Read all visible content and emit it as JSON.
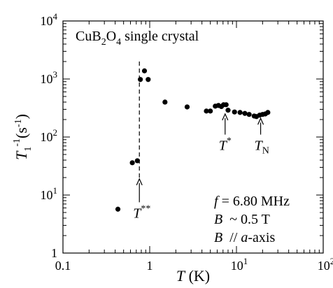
{
  "chart_data": {
    "type": "scatter",
    "x_scale": "log",
    "y_scale": "log",
    "xlim": [
      0.1,
      100
    ],
    "ylim": [
      1,
      10000
    ],
    "grid": false,
    "x_ticks": [
      {
        "value": 0.1,
        "label": "0.1"
      },
      {
        "value": 1,
        "label": "1"
      },
      {
        "value": 10,
        "base": "10",
        "exp": "1"
      },
      {
        "value": 100,
        "base": "10",
        "exp": "2"
      }
    ],
    "y_ticks": [
      {
        "value": 1,
        "label": "1"
      },
      {
        "value": 10,
        "base": "10",
        "exp": "1"
      },
      {
        "value": 100,
        "base": "10",
        "exp": "2"
      },
      {
        "value": 1000,
        "base": "10",
        "exp": "3"
      },
      {
        "value": 10000,
        "base": "10",
        "exp": "4"
      }
    ],
    "xlabel": {
      "italic": "T",
      "rest": " (K)"
    },
    "ylabel": {
      "italic": "T",
      "sub": "1",
      "sup": "-1",
      "rest": "(s",
      "rest_sup": "-1",
      "close": ")"
    },
    "title": {
      "a": "CuB",
      "sub1": "2",
      "b": "O",
      "sub2": "4",
      "c": " single crystal"
    },
    "series": [
      {
        "points": [
          [
            0.43,
            5.7
          ],
          [
            0.63,
            36
          ],
          [
            0.72,
            39
          ],
          [
            0.78,
            980
          ],
          [
            0.87,
            1380
          ],
          [
            0.96,
            980
          ],
          [
            1.5,
            400
          ],
          [
            2.7,
            330
          ],
          [
            4.5,
            280
          ],
          [
            5.0,
            280
          ],
          [
            5.7,
            340
          ],
          [
            6.2,
            350
          ],
          [
            6.7,
            335
          ],
          [
            7.1,
            360
          ],
          [
            7.6,
            360
          ],
          [
            8.0,
            290
          ],
          [
            9.5,
            270
          ],
          [
            11,
            265
          ],
          [
            12.5,
            255
          ],
          [
            14,
            245
          ],
          [
            16,
            230
          ],
          [
            17,
            225
          ],
          [
            18.5,
            238
          ],
          [
            20,
            245
          ],
          [
            21.5,
            250
          ],
          [
            23,
            265
          ]
        ]
      }
    ],
    "reference_line": {
      "x": 0.76,
      "y_from": 20,
      "y_to": 2000,
      "style": "dashed"
    },
    "annotations": [
      {
        "id": "tss",
        "main": "T",
        "sup": "**",
        "x": 0.76,
        "arrow_from": 7.5,
        "arrow_to": 19
      },
      {
        "id": "ts",
        "main": "T",
        "sup": "*",
        "x": 7.4,
        "arrow_from": 110,
        "arrow_to": 250
      },
      {
        "id": "tn",
        "main": "T",
        "sub": "N",
        "x": 19,
        "arrow_from": 110,
        "arrow_to": 210
      }
    ],
    "params": [
      {
        "i": "f",
        "t": " = 6.80 MHz"
      },
      {
        "i": "B",
        "t": "  ~ 0.5 T"
      },
      {
        "i": "B",
        "t": "  // ",
        "i2": "a",
        "t2": "-axis"
      }
    ]
  }
}
